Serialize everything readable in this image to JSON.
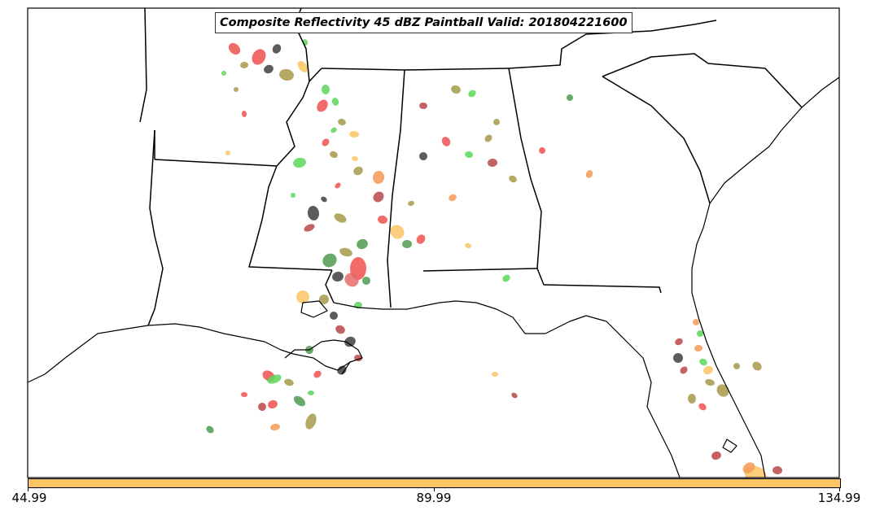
{
  "title": "Composite Reflectivity 45 dBZ Paintball Valid: 201804221600",
  "colorbar": {
    "color": "#fcc464",
    "min_label": "44.99",
    "mid_label": "89.99",
    "max_label": "134.99"
  },
  "member_colors": [
    "#5ad65a",
    "#f05050",
    "#3f3f3f",
    "#a69a4a",
    "#f59a55",
    "#fcc464",
    "#b84848",
    "#4f9a4f",
    "#7a9f2f",
    "#e86a6a"
  ],
  "map": {
    "line_color": "#000000",
    "background": "#ffffff"
  }
}
